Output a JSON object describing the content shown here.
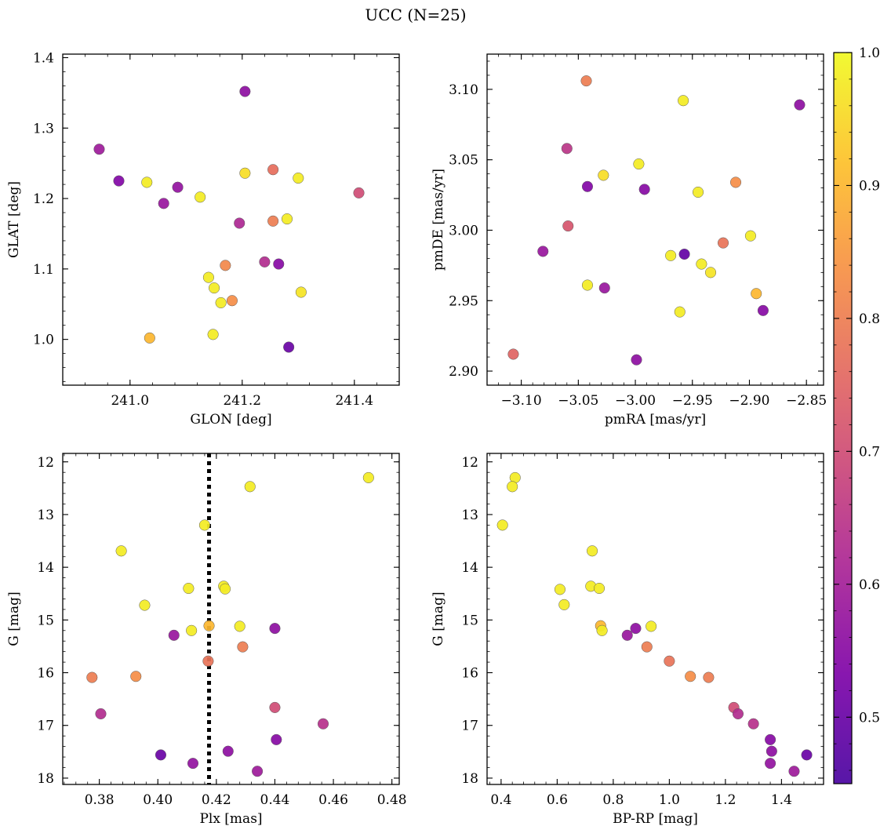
{
  "figure": {
    "title": "UCC (N=25)"
  },
  "colorbar": {
    "range": [
      0.45,
      1.0
    ],
    "ticks": [
      0.5,
      0.6,
      0.7,
      0.8,
      0.9,
      1.0
    ],
    "tick_labels": [
      "0.5",
      "0.6",
      "0.7",
      "0.8",
      "0.9",
      "1.0"
    ],
    "colormap": "plasma"
  },
  "chart_data": [
    {
      "type": "scatter",
      "id": "glon-glat",
      "xlabel": "GLON [deg]",
      "ylabel": "GLAT [deg]",
      "xlim": [
        240.88,
        241.48
      ],
      "ylim": [
        0.935,
        1.405
      ],
      "xticks": [
        241.0,
        241.2,
        241.4
      ],
      "xtick_labels": [
        "241.0",
        "241.2",
        "241.4"
      ],
      "yticks": [
        1.0,
        1.1,
        1.2,
        1.3,
        1.4
      ],
      "ytick_labels": [
        "1.0",
        "1.1",
        "1.2",
        "1.3",
        "1.4"
      ],
      "y_inverted": false,
      "points": [
        {
          "x": 241.205,
          "y": 1.352,
          "c": 0.56
        },
        {
          "x": 240.945,
          "y": 1.27,
          "c": 0.59
        },
        {
          "x": 240.98,
          "y": 1.225,
          "c": 0.54
        },
        {
          "x": 241.03,
          "y": 1.223,
          "c": 0.98
        },
        {
          "x": 241.085,
          "y": 1.216,
          "c": 0.57
        },
        {
          "x": 241.06,
          "y": 1.193,
          "c": 0.58
        },
        {
          "x": 241.125,
          "y": 1.202,
          "c": 0.98
        },
        {
          "x": 241.205,
          "y": 1.236,
          "c": 0.96
        },
        {
          "x": 241.255,
          "y": 1.241,
          "c": 0.77
        },
        {
          "x": 241.3,
          "y": 1.229,
          "c": 0.98
        },
        {
          "x": 241.408,
          "y": 1.208,
          "c": 0.7
        },
        {
          "x": 241.255,
          "y": 1.168,
          "c": 0.8
        },
        {
          "x": 241.28,
          "y": 1.171,
          "c": 0.98
        },
        {
          "x": 241.195,
          "y": 1.165,
          "c": 0.62
        },
        {
          "x": 241.17,
          "y": 1.105,
          "c": 0.82
        },
        {
          "x": 241.24,
          "y": 1.11,
          "c": 0.63
        },
        {
          "x": 241.265,
          "y": 1.107,
          "c": 0.55
        },
        {
          "x": 241.14,
          "y": 1.088,
          "c": 0.98
        },
        {
          "x": 241.15,
          "y": 1.073,
          "c": 0.98
        },
        {
          "x": 241.305,
          "y": 1.067,
          "c": 0.97
        },
        {
          "x": 241.162,
          "y": 1.052,
          "c": 0.98
        },
        {
          "x": 241.182,
          "y": 1.055,
          "c": 0.83
        },
        {
          "x": 241.148,
          "y": 1.007,
          "c": 0.98
        },
        {
          "x": 241.035,
          "y": 1.002,
          "c": 0.9
        },
        {
          "x": 241.283,
          "y": 0.989,
          "c": 0.5
        }
      ]
    },
    {
      "type": "scatter",
      "id": "pmra-pmde",
      "xlabel": "pmRA [mas/yr]",
      "ylabel": "pmDE [mas/yr]",
      "xlim": [
        -3.13,
        -2.835
      ],
      "ylim": [
        2.89,
        3.125
      ],
      "xticks": [
        -3.1,
        -3.05,
        -3.0,
        -2.95,
        -2.9,
        -2.85
      ],
      "xtick_labels": [
        "−3.10",
        "−3.05",
        "−3.00",
        "−2.95",
        "−2.90",
        "−2.85"
      ],
      "yticks": [
        2.9,
        2.95,
        3.0,
        3.05,
        3.1
      ],
      "ytick_labels": [
        "2.90",
        "2.95",
        "3.00",
        "3.05",
        "3.10"
      ],
      "y_inverted": false,
      "points": [
        {
          "x": -3.043,
          "y": 3.106,
          "c": 0.8
        },
        {
          "x": -2.958,
          "y": 3.092,
          "c": 0.98
        },
        {
          "x": -2.856,
          "y": 3.089,
          "c": 0.56
        },
        {
          "x": -3.06,
          "y": 3.058,
          "c": 0.65
        },
        {
          "x": -2.997,
          "y": 3.047,
          "c": 0.98
        },
        {
          "x": -3.028,
          "y": 3.039,
          "c": 0.96
        },
        {
          "x": -3.042,
          "y": 3.031,
          "c": 0.54
        },
        {
          "x": -2.992,
          "y": 3.029,
          "c": 0.55
        },
        {
          "x": -2.945,
          "y": 3.027,
          "c": 0.98
        },
        {
          "x": -2.912,
          "y": 3.034,
          "c": 0.83
        },
        {
          "x": -3.059,
          "y": 3.003,
          "c": 0.72
        },
        {
          "x": -2.899,
          "y": 2.996,
          "c": 0.98
        },
        {
          "x": -2.923,
          "y": 2.991,
          "c": 0.78
        },
        {
          "x": -3.081,
          "y": 2.985,
          "c": 0.58
        },
        {
          "x": -2.969,
          "y": 2.982,
          "c": 0.98
        },
        {
          "x": -2.957,
          "y": 2.983,
          "c": 0.49
        },
        {
          "x": -2.942,
          "y": 2.976,
          "c": 0.98
        },
        {
          "x": -2.934,
          "y": 2.97,
          "c": 0.97
        },
        {
          "x": -3.042,
          "y": 2.961,
          "c": 0.98
        },
        {
          "x": -3.027,
          "y": 2.959,
          "c": 0.58
        },
        {
          "x": -2.894,
          "y": 2.955,
          "c": 0.9
        },
        {
          "x": -2.961,
          "y": 2.942,
          "c": 0.98
        },
        {
          "x": -2.888,
          "y": 2.943,
          "c": 0.55
        },
        {
          "x": -3.107,
          "y": 2.912,
          "c": 0.75
        },
        {
          "x": -2.999,
          "y": 2.908,
          "c": 0.56
        }
      ]
    },
    {
      "type": "scatter",
      "id": "plx-g",
      "xlabel": "Plx [mas]",
      "ylabel": "G [mag]",
      "xlim": [
        0.3675,
        0.4825
      ],
      "ylim": [
        18.12,
        11.84
      ],
      "xticks": [
        0.38,
        0.4,
        0.42,
        0.44,
        0.46,
        0.48
      ],
      "xtick_labels": [
        "0.38",
        "0.40",
        "0.42",
        "0.44",
        "0.46",
        "0.48"
      ],
      "yticks": [
        12,
        13,
        14,
        15,
        16,
        17,
        18
      ],
      "ytick_labels": [
        "12",
        "13",
        "14",
        "15",
        "16",
        "17",
        "18"
      ],
      "y_inverted": true,
      "vline": {
        "x": 0.4175,
        "style": "dotted"
      },
      "points": [
        {
          "x": 0.472,
          "y": 12.3,
          "c": 0.98
        },
        {
          "x": 0.4315,
          "y": 12.47,
          "c": 0.98
        },
        {
          "x": 0.416,
          "y": 13.2,
          "c": 0.98
        },
        {
          "x": 0.3875,
          "y": 13.69,
          "c": 0.98
        },
        {
          "x": 0.4105,
          "y": 14.4,
          "c": 0.98
        },
        {
          "x": 0.4225,
          "y": 14.36,
          "c": 0.98
        },
        {
          "x": 0.423,
          "y": 14.41,
          "c": 0.98
        },
        {
          "x": 0.3955,
          "y": 14.72,
          "c": 0.98
        },
        {
          "x": 0.4175,
          "y": 15.11,
          "c": 0.9
        },
        {
          "x": 0.428,
          "y": 15.12,
          "c": 0.98
        },
        {
          "x": 0.44,
          "y": 15.16,
          "c": 0.56
        },
        {
          "x": 0.4115,
          "y": 15.2,
          "c": 0.98
        },
        {
          "x": 0.4055,
          "y": 15.29,
          "c": 0.58
        },
        {
          "x": 0.429,
          "y": 15.51,
          "c": 0.8
        },
        {
          "x": 0.4172,
          "y": 15.78,
          "c": 0.78
        },
        {
          "x": 0.3775,
          "y": 16.09,
          "c": 0.8
        },
        {
          "x": 0.3925,
          "y": 16.07,
          "c": 0.83
        },
        {
          "x": 0.44,
          "y": 16.66,
          "c": 0.7
        },
        {
          "x": 0.3805,
          "y": 16.78,
          "c": 0.63
        },
        {
          "x": 0.4565,
          "y": 16.97,
          "c": 0.64
        },
        {
          "x": 0.4405,
          "y": 17.27,
          "c": 0.55
        },
        {
          "x": 0.424,
          "y": 17.49,
          "c": 0.56
        },
        {
          "x": 0.401,
          "y": 17.56,
          "c": 0.5
        },
        {
          "x": 0.412,
          "y": 17.72,
          "c": 0.57
        },
        {
          "x": 0.434,
          "y": 17.87,
          "c": 0.59
        }
      ]
    },
    {
      "type": "scatter",
      "id": "bprp-g",
      "xlabel": "BP-RP [mag]",
      "ylabel": "G [mag]",
      "xlim": [
        0.35,
        1.55
      ],
      "ylim": [
        18.12,
        11.84
      ],
      "xticks": [
        0.4,
        0.6,
        0.8,
        1.0,
        1.2,
        1.4
      ],
      "xtick_labels": [
        "0.4",
        "0.6",
        "0.8",
        "1.0",
        "1.2",
        "1.4"
      ],
      "yticks": [
        12,
        13,
        14,
        15,
        16,
        17,
        18
      ],
      "ytick_labels": [
        "12",
        "13",
        "14",
        "15",
        "16",
        "17",
        "18"
      ],
      "y_inverted": true,
      "points": [
        {
          "x": 0.45,
          "y": 12.3,
          "c": 0.98
        },
        {
          "x": 0.44,
          "y": 12.47,
          "c": 0.98
        },
        {
          "x": 0.405,
          "y": 13.2,
          "c": 0.98
        },
        {
          "x": 0.725,
          "y": 13.69,
          "c": 0.98
        },
        {
          "x": 0.61,
          "y": 14.42,
          "c": 0.98
        },
        {
          "x": 0.72,
          "y": 14.36,
          "c": 0.98
        },
        {
          "x": 0.75,
          "y": 14.4,
          "c": 0.98
        },
        {
          "x": 0.625,
          "y": 14.71,
          "c": 0.98
        },
        {
          "x": 0.755,
          "y": 15.11,
          "c": 0.9
        },
        {
          "x": 0.935,
          "y": 15.12,
          "c": 0.98
        },
        {
          "x": 0.88,
          "y": 15.16,
          "c": 0.56
        },
        {
          "x": 0.76,
          "y": 15.2,
          "c": 0.98
        },
        {
          "x": 0.85,
          "y": 15.29,
          "c": 0.58
        },
        {
          "x": 0.92,
          "y": 15.51,
          "c": 0.8
        },
        {
          "x": 1.0,
          "y": 15.78,
          "c": 0.78
        },
        {
          "x": 1.075,
          "y": 16.07,
          "c": 0.83
        },
        {
          "x": 1.14,
          "y": 16.09,
          "c": 0.8
        },
        {
          "x": 1.23,
          "y": 16.66,
          "c": 0.7
        },
        {
          "x": 1.245,
          "y": 16.78,
          "c": 0.63
        },
        {
          "x": 1.3,
          "y": 16.97,
          "c": 0.64
        },
        {
          "x": 1.36,
          "y": 17.27,
          "c": 0.55
        },
        {
          "x": 1.365,
          "y": 17.49,
          "c": 0.56
        },
        {
          "x": 1.49,
          "y": 17.56,
          "c": 0.5
        },
        {
          "x": 1.36,
          "y": 17.72,
          "c": 0.57
        },
        {
          "x": 1.445,
          "y": 17.87,
          "c": 0.59
        }
      ]
    }
  ]
}
